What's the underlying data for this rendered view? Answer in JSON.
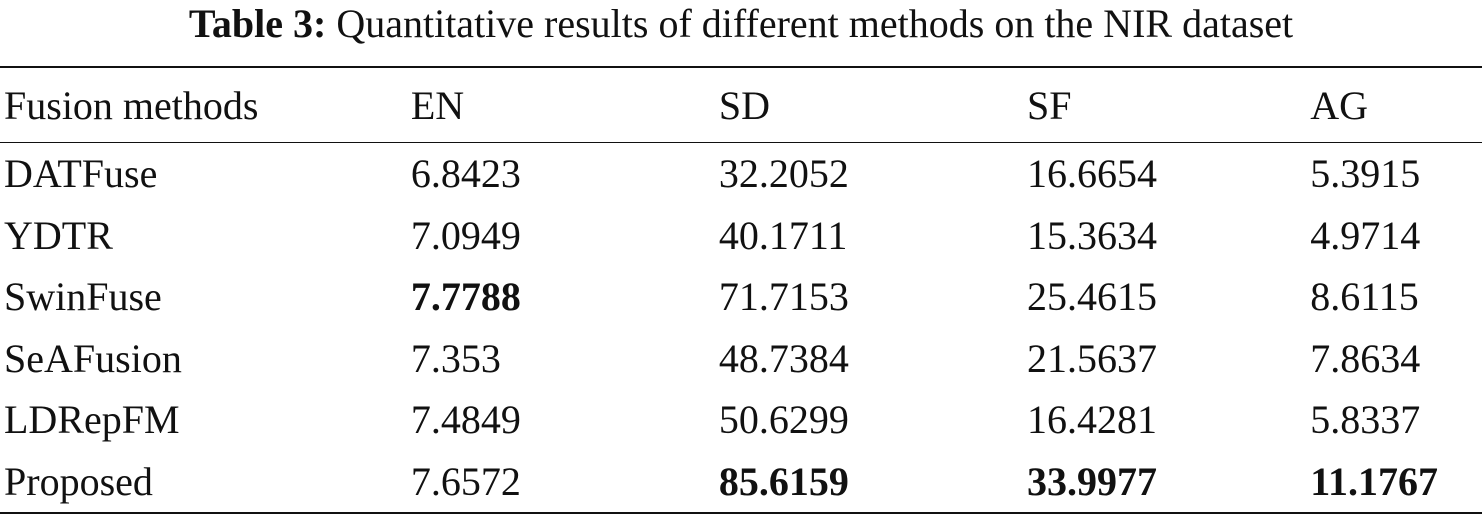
{
  "caption": {
    "label": "Table 3:",
    "text": "Quantitative results of different methods on the NIR dataset"
  },
  "table": {
    "headers": [
      "Fusion methods",
      "EN",
      "SD",
      "SF",
      "AG"
    ],
    "rows": [
      {
        "method": "DATFuse",
        "EN": "6.8423",
        "SD": "32.2052",
        "SF": "16.6654",
        "AG": "5.3915"
      },
      {
        "method": "YDTR",
        "EN": "7.0949",
        "SD": "40.1711",
        "SF": "15.3634",
        "AG": "4.9714"
      },
      {
        "method": "SwinFuse",
        "EN": "7.7788",
        "SD": "71.7153",
        "SF": "25.4615",
        "AG": "8.6115"
      },
      {
        "method": "SeAFusion",
        "EN": "7.353",
        "SD": "48.7384",
        "SF": "21.5637",
        "AG": "7.8634"
      },
      {
        "method": "LDRepFM",
        "EN": "7.4849",
        "SD": "50.6299",
        "SF": "16.4281",
        "AG": "5.8337"
      },
      {
        "method": "Proposed",
        "EN": "7.6572",
        "SD": "85.6159",
        "SF": "33.9977",
        "AG": "11.1767"
      }
    ]
  }
}
